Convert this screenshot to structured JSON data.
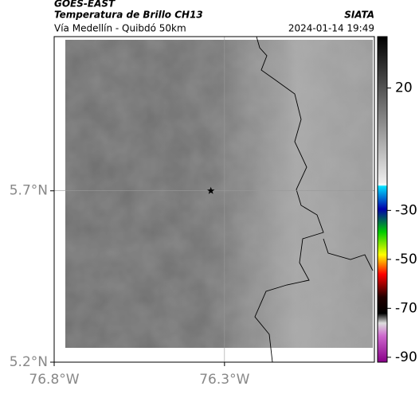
{
  "header": {
    "source": "GOES-EAST",
    "product": "Temperatura de Brillo CH13",
    "organization": "SIATA",
    "route": "Vía Medellín - Quibdó 50km",
    "timestamp": "2024-01-14 19:49"
  },
  "chart_data": {
    "type": "map",
    "xlim": [
      -76.8,
      -75.86
    ],
    "ylim": [
      5.2,
      6.15
    ],
    "xticks": [
      {
        "value": -76.8,
        "label": "76.8°W"
      },
      {
        "value": -76.3,
        "label": "76.3°W"
      }
    ],
    "yticks": [
      {
        "value": 5.2,
        "label": "5.2°N"
      },
      {
        "value": 5.7,
        "label": "5.7°N"
      }
    ],
    "grid": true,
    "marker": {
      "lon": -76.34,
      "lat": 5.7
    },
    "colorbar": {
      "lim": [
        -92,
        41
      ],
      "ticks": [
        20,
        -30,
        -50,
        -70,
        -90
      ]
    }
  }
}
